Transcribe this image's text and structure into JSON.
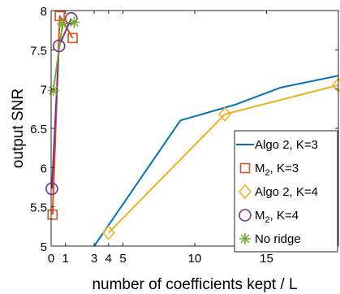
{
  "chart_data": {
    "type": "line",
    "xlabel": "number of coefficients kept / L",
    "ylabel": "output SNR",
    "xlim": [
      0,
      20
    ],
    "ylim": [
      5,
      8
    ],
    "xticks": [
      0,
      1,
      3,
      4,
      5,
      10,
      15
    ],
    "yticks": [
      5,
      5.5,
      6,
      6.5,
      7,
      7.5,
      8
    ],
    "legend_position": "right",
    "series": [
      {
        "name": "Algo 2, K=3",
        "color": "#0072BD",
        "marker": "none",
        "x": [
          3,
          9,
          12.8,
          16,
          20
        ],
        "y": [
          5.0,
          6.6,
          6.8,
          7.02,
          7.17
        ]
      },
      {
        "name": "M_2, K=3",
        "color": "#D95319",
        "marker": "square",
        "x": [
          0.1,
          0.6,
          1.5
        ],
        "y": [
          5.4,
          7.93,
          7.65
        ]
      },
      {
        "name": "Algo 2, K=4",
        "color": "#EDB120",
        "marker": "diamond",
        "x": [
          4,
          12.1,
          20
        ],
        "y": [
          5.17,
          6.68,
          7.05
        ]
      },
      {
        "name": "M_2, K=4",
        "color": "#7E2F8E",
        "marker": "circle",
        "x": [
          0.05,
          0.55,
          1.4
        ],
        "y": [
          5.73,
          7.55,
          7.9
        ]
      },
      {
        "name": "No ridge",
        "color": "#77AC30",
        "marker": "star",
        "x": [
          0.15,
          0.8,
          1.6
        ],
        "y": [
          6.98,
          7.83,
          7.85
        ]
      }
    ]
  }
}
